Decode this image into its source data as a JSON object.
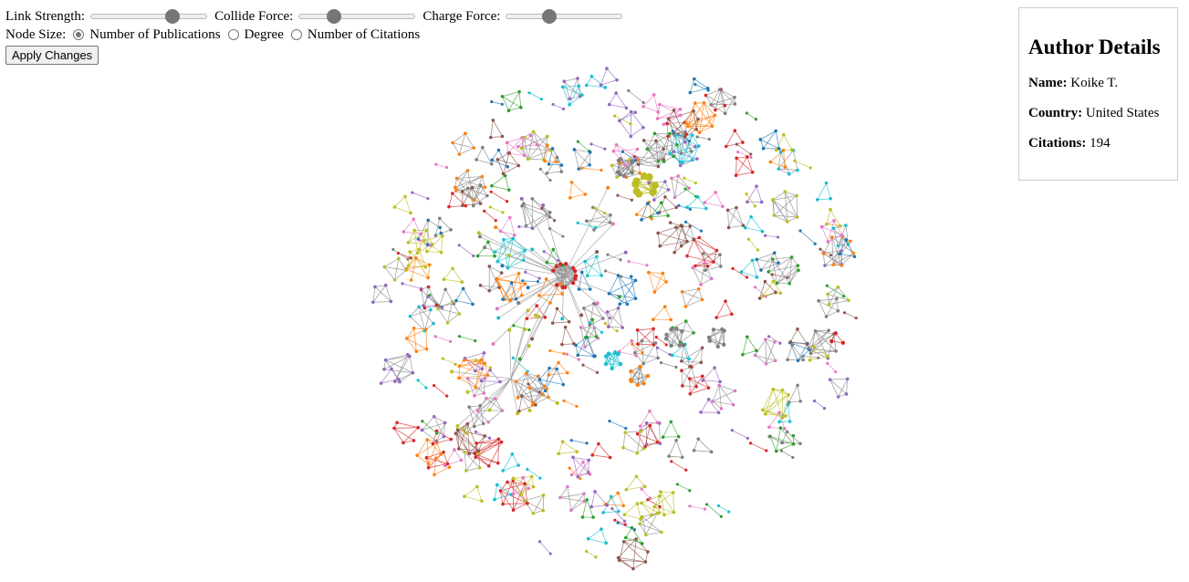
{
  "controls": {
    "link_strength": {
      "label": "Link Strength:",
      "value": 0.7
    },
    "collide_force": {
      "label": "Collide Force:",
      "value": 0.3
    },
    "charge_force": {
      "label": "Charge Force:",
      "value": 0.37
    },
    "node_size": {
      "label": "Node Size:",
      "options": [
        "Number of Publications",
        "Degree",
        "Number of Citations"
      ],
      "selected": "Number of Publications"
    },
    "apply_label": "Apply Changes"
  },
  "author_details": {
    "title": "Author Details",
    "name_label": "Name:",
    "name": "Koike T.",
    "country_label": "Country:",
    "country": "United States",
    "citations_label": "Citations:",
    "citations": "194"
  },
  "network": {
    "palette": [
      "#bcbd22",
      "#7f7f7f",
      "#1f77b4",
      "#ff7f0e",
      "#2ca02c",
      "#d62728",
      "#9467bd",
      "#8c564b",
      "#e377c2",
      "#17becf"
    ]
  }
}
